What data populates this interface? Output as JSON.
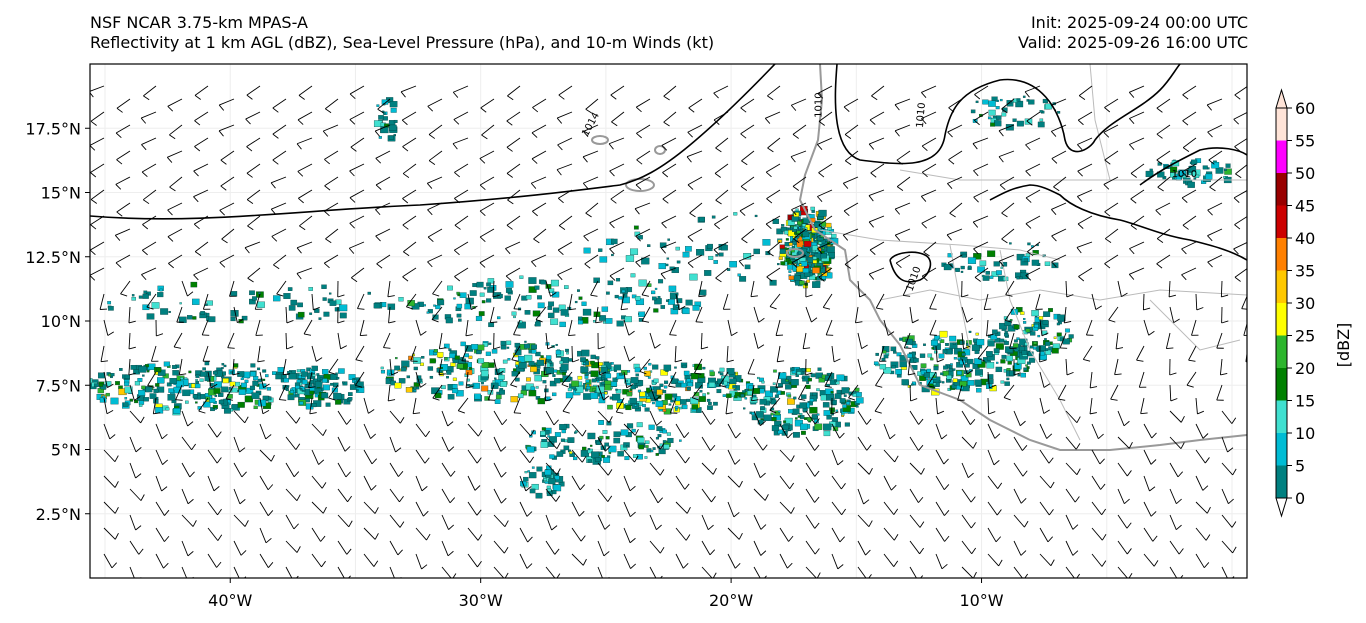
{
  "header": {
    "title_line1": "NSF NCAR 3.75-km MPAS-A",
    "title_line2": "Reflectivity at 1 km AGL (dBZ), Sea-Level Pressure (hPa), and 10-m Winds (kt)",
    "init": "Init: 2025-09-24 00:00 UTC",
    "valid": "Valid: 2025-09-26 16:00 UTC"
  },
  "map": {
    "lon_range": [
      -45.6,
      0.6
    ],
    "lat_range": [
      0,
      20
    ],
    "lat_ticks": [
      {
        "value": 2.5,
        "label": "2.5°N"
      },
      {
        "value": 5,
        "label": "5°N"
      },
      {
        "value": 7.5,
        "label": "7.5°N"
      },
      {
        "value": 10,
        "label": "10°N"
      },
      {
        "value": 12.5,
        "label": "12.5°N"
      },
      {
        "value": 15,
        "label": "15°N"
      },
      {
        "value": 17.5,
        "label": "17.5°N"
      }
    ],
    "lon_ticks": [
      {
        "value": -40,
        "label": "40°W"
      },
      {
        "value": -30,
        "label": "30°W"
      },
      {
        "value": -20,
        "label": "20°W"
      },
      {
        "value": -10,
        "label": "10°W"
      }
    ],
    "isobar_labels": [
      {
        "text": "1014",
        "lon": -25.5,
        "lat": 17.6,
        "rot": -62
      },
      {
        "text": "1010",
        "lon": -16.4,
        "lat": 18.4,
        "rot": -90
      },
      {
        "text": "1010",
        "lon": -12.3,
        "lat": 18.0,
        "rot": -85
      },
      {
        "text": "1010",
        "lon": -12.6,
        "lat": 11.6,
        "rot": -70
      },
      {
        "text": "1010",
        "lon": -1.9,
        "lat": 15.6,
        "rot": 0
      }
    ]
  },
  "colorbar": {
    "label": "[dBZ]",
    "levels": [
      "0",
      "5",
      "10",
      "15",
      "20",
      "25",
      "30",
      "35",
      "40",
      "45",
      "50",
      "55",
      "60"
    ],
    "colors": [
      "#ffffff",
      "#008080",
      "#00bcd4",
      "#40e0d0",
      "#008000",
      "#2db52d",
      "#ffff00",
      "#ffc800",
      "#ff8000",
      "#cc0000",
      "#990000",
      "#ff00ff",
      "#ffe4d8"
    ]
  },
  "colors": {
    "coast": "#999999",
    "isobar": "#000000",
    "barb": "#000000"
  }
}
